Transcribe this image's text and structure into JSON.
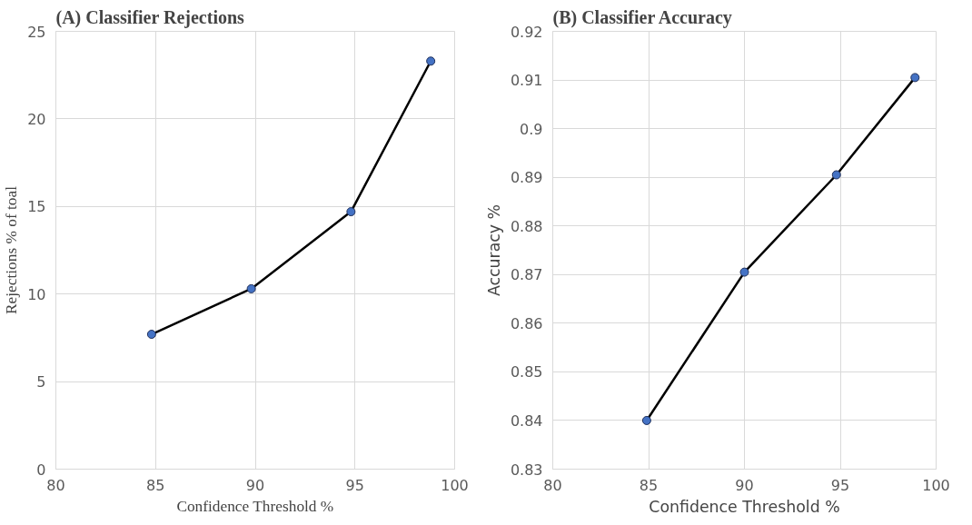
{
  "chart_data": [
    {
      "type": "line",
      "title": "(A) Classifier Rejections",
      "xlabel": "Confidence Threshold %",
      "ylabel": "Rejections % of toal",
      "x": [
        84.8,
        89.8,
        94.8,
        98.8
      ],
      "series": [
        {
          "color": "#000000",
          "values": [
            7.7,
            10.3,
            14.7,
            23.3
          ]
        }
      ],
      "xlim": [
        80,
        100
      ],
      "xticks": [
        80,
        85,
        90,
        95,
        100
      ],
      "ylim": [
        0,
        25
      ],
      "yticks": [
        0,
        5,
        10,
        15,
        20,
        25
      ],
      "grid": true,
      "marker": "circle",
      "line_style": "solid"
    },
    {
      "type": "line",
      "title": "(B) Classifier Accuracy",
      "xlabel": "Confidence Threshold %",
      "ylabel": "Accuracy %",
      "x": [
        84.9,
        90,
        94.8,
        98.9
      ],
      "series": [
        {
          "color": "#000000",
          "values": [
            0.84,
            0.8705,
            0.8905,
            0.9105
          ]
        }
      ],
      "xlim": [
        80,
        100
      ],
      "xticks": [
        80,
        85,
        90,
        95,
        100
      ],
      "ylim": [
        0.83,
        0.92
      ],
      "yticks": [
        0.83,
        0.84,
        0.85,
        0.86,
        0.87,
        0.88,
        0.89,
        0.9,
        0.91,
        0.92
      ],
      "grid": true,
      "marker": "circle",
      "line_style": "solid"
    }
  ]
}
